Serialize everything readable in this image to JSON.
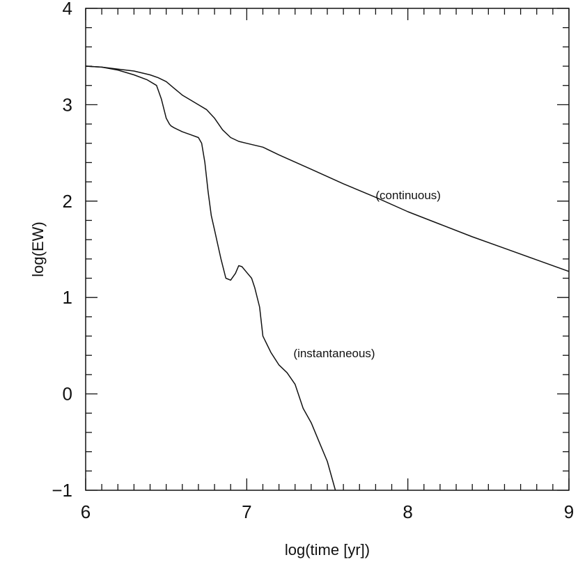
{
  "chart_data": {
    "type": "line",
    "xlabel": "log(time [yr])",
    "ylabel": "log(EW)",
    "xlim": [
      6,
      9
    ],
    "ylim": [
      -1,
      4
    ],
    "x_ticks": [
      6,
      7,
      8,
      9
    ],
    "x_tick_labels": [
      "6",
      "7",
      "8",
      "9"
    ],
    "y_ticks": [
      -1,
      0,
      1,
      2,
      3,
      4
    ],
    "y_tick_labels": [
      "−1",
      "0",
      "1",
      "2",
      "3",
      "4"
    ],
    "grid": false,
    "legend": "none",
    "annotations": [
      {
        "text": "(continuous)",
        "x": 7.8,
        "y": 2.02
      },
      {
        "text": "(instantaneous)",
        "x": 7.29,
        "y": 0.38
      }
    ],
    "series": [
      {
        "key": "continuous",
        "x": [
          6.0,
          6.1,
          6.2,
          6.3,
          6.4,
          6.45,
          6.5,
          6.55,
          6.6,
          6.65,
          6.7,
          6.75,
          6.8,
          6.85,
          6.9,
          6.95,
          7.0,
          7.1,
          7.2,
          7.4,
          7.6,
          7.8,
          8.0,
          8.2,
          8.4,
          8.6,
          8.8,
          9.0
        ],
        "y": [
          3.4,
          3.39,
          3.37,
          3.35,
          3.31,
          3.28,
          3.24,
          3.17,
          3.1,
          3.05,
          3.0,
          2.95,
          2.86,
          2.74,
          2.66,
          2.62,
          2.6,
          2.56,
          2.48,
          2.33,
          2.18,
          2.04,
          1.89,
          1.76,
          1.63,
          1.51,
          1.39,
          1.27
        ]
      },
      {
        "key": "instantaneous",
        "x": [
          6.0,
          6.1,
          6.2,
          6.3,
          6.38,
          6.44,
          6.47,
          6.5,
          6.52,
          6.53,
          6.55,
          6.6,
          6.65,
          6.7,
          6.72,
          6.74,
          6.76,
          6.78,
          6.8,
          6.82,
          6.84,
          6.87,
          6.9,
          6.93,
          6.95,
          6.97,
          7.0,
          7.03,
          7.05,
          7.08,
          7.1,
          7.15,
          7.2,
          7.25,
          7.3,
          7.35,
          7.4,
          7.45,
          7.5,
          7.55
        ],
        "y": [
          3.4,
          3.39,
          3.36,
          3.31,
          3.26,
          3.2,
          3.06,
          2.86,
          2.8,
          2.78,
          2.76,
          2.72,
          2.69,
          2.66,
          2.6,
          2.4,
          2.1,
          1.85,
          1.7,
          1.55,
          1.4,
          1.2,
          1.18,
          1.25,
          1.33,
          1.32,
          1.26,
          1.2,
          1.1,
          0.9,
          0.6,
          0.43,
          0.3,
          0.22,
          0.1,
          -0.15,
          -0.3,
          -0.5,
          -0.7,
          -1.0
        ]
      }
    ]
  }
}
